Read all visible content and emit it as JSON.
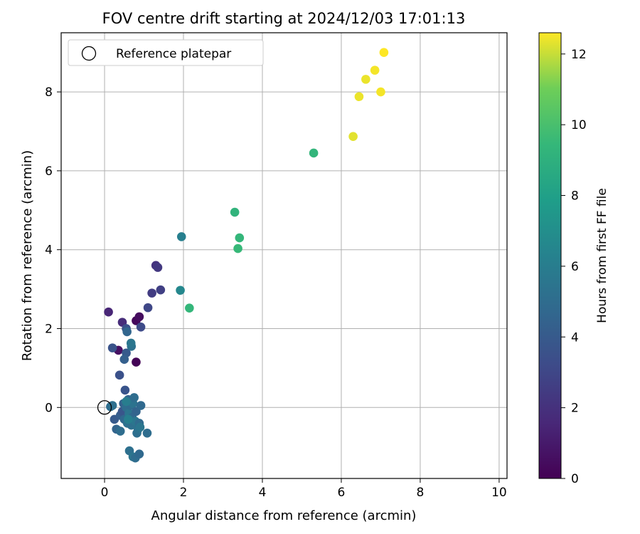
{
  "chart_data": {
    "type": "scatter",
    "title": "FOV centre drift starting at 2024/12/03 17:01:13",
    "xlabel": "Angular distance from reference (arcmin)",
    "ylabel": "Rotation from reference (arcmin)",
    "xlim": [
      -1.1,
      10.2
    ],
    "ylim": [
      -1.8,
      9.5
    ],
    "xticks": [
      0,
      2,
      4,
      6,
      8,
      10
    ],
    "yticks": [
      0,
      2,
      4,
      6,
      8
    ],
    "grid": true,
    "legend": {
      "placement": "upper left",
      "entries": [
        "Reference platepar"
      ]
    },
    "reference_point": {
      "name": "Reference platepar",
      "x": 0,
      "y": 0
    },
    "colorbar": {
      "label": "Hours from first FF file",
      "colormap": "viridis",
      "range": [
        0,
        12.6
      ],
      "ticks": [
        0,
        2,
        4,
        6,
        8,
        10,
        12
      ]
    },
    "points": [
      {
        "x": 0.8,
        "y": 1.15,
        "c": 0.1
      },
      {
        "x": 0.8,
        "y": 2.2,
        "c": 0.3
      },
      {
        "x": 0.88,
        "y": 2.3,
        "c": 0.5
      },
      {
        "x": 0.35,
        "y": 1.45,
        "c": 0.6
      },
      {
        "x": 0.1,
        "y": 2.42,
        "c": 1.5
      },
      {
        "x": 0.45,
        "y": 2.16,
        "c": 1.8
      },
      {
        "x": 1.3,
        "y": 3.6,
        "c": 2.1
      },
      {
        "x": 1.35,
        "y": 3.55,
        "c": 2.3
      },
      {
        "x": 1.2,
        "y": 2.9,
        "c": 2.5
      },
      {
        "x": 1.42,
        "y": 2.98,
        "c": 2.7
      },
      {
        "x": 1.1,
        "y": 2.53,
        "c": 3.0
      },
      {
        "x": 0.92,
        "y": 2.04,
        "c": 3.2
      },
      {
        "x": 0.55,
        "y": 2.0,
        "c": 3.5
      },
      {
        "x": 0.2,
        "y": 1.51,
        "c": 3.6
      },
      {
        "x": 0.38,
        "y": 0.82,
        "c": 3.5
      },
      {
        "x": 0.52,
        "y": 0.44,
        "c": 3.7
      },
      {
        "x": 0.55,
        "y": 1.38,
        "c": 4.0
      },
      {
        "x": 0.5,
        "y": 1.22,
        "c": 4.3
      },
      {
        "x": 0.57,
        "y": 1.92,
        "c": 4.6
      },
      {
        "x": 0.68,
        "y": 1.55,
        "c": 5.3
      },
      {
        "x": 0.67,
        "y": 1.63,
        "c": 5.6
      },
      {
        "x": 0.15,
        "y": 0.02,
        "c": 5.0
      },
      {
        "x": 0.2,
        "y": 0.05,
        "c": 5.2
      },
      {
        "x": 0.25,
        "y": -0.3,
        "c": 4.0
      },
      {
        "x": 0.3,
        "y": -0.55,
        "c": 4.5
      },
      {
        "x": 0.4,
        "y": -0.6,
        "c": 5.0
      },
      {
        "x": 0.4,
        "y": -0.2,
        "c": 4.2
      },
      {
        "x": 0.45,
        "y": -0.1,
        "c": 3.8
      },
      {
        "x": 0.48,
        "y": 0.1,
        "c": 4.4
      },
      {
        "x": 0.5,
        "y": -0.3,
        "c": 4.8
      },
      {
        "x": 0.55,
        "y": 0.0,
        "c": 5.0
      },
      {
        "x": 0.58,
        "y": -0.4,
        "c": 5.3
      },
      {
        "x": 0.6,
        "y": 0.2,
        "c": 4.6
      },
      {
        "x": 0.62,
        "y": -0.15,
        "c": 5.5
      },
      {
        "x": 0.65,
        "y": 0.05,
        "c": 4.9
      },
      {
        "x": 0.68,
        "y": -0.45,
        "c": 5.2
      },
      {
        "x": 0.7,
        "y": -0.25,
        "c": 4.7
      },
      {
        "x": 0.72,
        "y": 0.1,
        "c": 5.4
      },
      {
        "x": 0.75,
        "y": 0.25,
        "c": 5.0
      },
      {
        "x": 0.78,
        "y": -0.35,
        "c": 5.6
      },
      {
        "x": 0.8,
        "y": -0.1,
        "c": 4.5
      },
      {
        "x": 0.82,
        "y": -0.65,
        "c": 5.1
      },
      {
        "x": 0.85,
        "y": -0.55,
        "c": 5.3
      },
      {
        "x": 0.88,
        "y": -0.4,
        "c": 4.9
      },
      {
        "x": 0.9,
        "y": -0.5,
        "c": 5.6
      },
      {
        "x": 0.92,
        "y": 0.05,
        "c": 4.8
      },
      {
        "x": 1.08,
        "y": -0.65,
        "c": 5.0
      },
      {
        "x": 0.63,
        "y": -1.1,
        "c": 5.2
      },
      {
        "x": 0.72,
        "y": -1.25,
        "c": 5.5
      },
      {
        "x": 0.78,
        "y": -1.28,
        "c": 5.0
      },
      {
        "x": 0.88,
        "y": -1.18,
        "c": 4.8
      },
      {
        "x": 0.55,
        "y": 0.15,
        "c": 6.0
      },
      {
        "x": 0.6,
        "y": -0.3,
        "c": 6.1
      },
      {
        "x": 1.95,
        "y": 4.33,
        "c": 6.1
      },
      {
        "x": 1.92,
        "y": 2.97,
        "c": 6.6
      },
      {
        "x": 2.15,
        "y": 2.52,
        "c": 9.4
      },
      {
        "x": 3.3,
        "y": 4.95,
        "c": 9.2
      },
      {
        "x": 3.42,
        "y": 4.3,
        "c": 9.4
      },
      {
        "x": 3.38,
        "y": 4.03,
        "c": 9.5
      },
      {
        "x": 5.3,
        "y": 6.45,
        "c": 9.3
      },
      {
        "x": 6.3,
        "y": 6.87,
        "c": 12.3
      },
      {
        "x": 6.45,
        "y": 7.88,
        "c": 12.4
      },
      {
        "x": 6.62,
        "y": 8.32,
        "c": 12.4
      },
      {
        "x": 6.85,
        "y": 8.55,
        "c": 12.5
      },
      {
        "x": 7.0,
        "y": 8.0,
        "c": 12.5
      },
      {
        "x": 7.08,
        "y": 9.0,
        "c": 12.6
      }
    ]
  }
}
